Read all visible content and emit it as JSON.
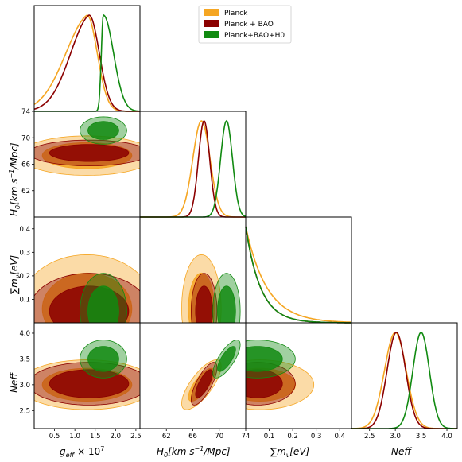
{
  "chart_data": {
    "type": "corner",
    "parameters": [
      {
        "key": "g",
        "label": "g_eff × 10^7",
        "range": [
          0.0,
          2.6
        ],
        "ticks": [
          "0.5",
          "1.0",
          "1.5",
          "2.0",
          "2.5"
        ]
      },
      {
        "key": "H0",
        "label": "H0[km s^-1/Mpc]",
        "range": [
          58,
          74
        ],
        "ticks": [
          "62",
          "66",
          "70",
          "74"
        ]
      },
      {
        "key": "mnu",
        "label": "Σmν[eV]",
        "range": [
          0.0,
          0.45
        ],
        "ticks": [
          "0.1",
          "0.2",
          "0.3",
          "0.4"
        ]
      },
      {
        "key": "Neff",
        "label": "Neff",
        "range": [
          2.15,
          4.2
        ],
        "ticks": [
          "2.5",
          "3.0",
          "3.5",
          "4.0"
        ]
      }
    ],
    "tick_values": {
      "g": [
        0.5,
        1.0,
        1.5,
        2.0,
        2.5
      ],
      "H0": [
        62,
        66,
        70,
        74
      ],
      "mnu": [
        0.1,
        0.2,
        0.3,
        0.4
      ],
      "Neff": [
        2.5,
        3.0,
        3.5,
        4.0
      ]
    },
    "axis_labels": {
      "g_x": "g",
      "g_x_sub": "eff",
      "g_x_suffix": " × 10",
      "g_x_sup": "7",
      "H0_x": "H",
      "H0_x_sub": "0",
      "H0_x_suffix": "[km s",
      "H0_x_sup": "−1",
      "H0_x_suffix2": "/Mpc]",
      "mnu_x": "∑m",
      "mnu_x_sub": "ν",
      "mnu_x_suffix": "[eV]",
      "Neff_x": "Neff"
    },
    "legend": {
      "placement": "top-center",
      "entries": [
        {
          "name": "Planck",
          "color": "#f5a623"
        },
        {
          "name": "Planck + BAO",
          "color": "#8b0000"
        },
        {
          "name": "Planck+BAO+H0",
          "color": "#118a11"
        }
      ]
    },
    "series": [
      {
        "name": "Planck",
        "color": "#f5a623",
        "means": {
          "g": 1.3,
          "H0": 67.3,
          "mnu": 0.06,
          "Neff": 3.0
        },
        "sigmas": {
          "g": 0.55,
          "H0": 1.3,
          "mnu": 0.1,
          "Neff": 0.2
        },
        "g_low": 0.62,
        "Neff_sigma": 0.21,
        "contour_scale": 1.0
      },
      {
        "name": "Planck + BAO",
        "color": "#8b0000",
        "means": {
          "g": 1.35,
          "H0": 67.7,
          "mnu": 0.05,
          "Neff": 3.02
        },
        "sigmas": {
          "g": 0.5,
          "H0": 0.85,
          "mnu": 0.07,
          "Neff": 0.16
        },
        "g_low": 0.52,
        "Neff_sigma": 0.18,
        "contour_scale": 0.85
      },
      {
        "name": "Planck+BAO+H0",
        "color": "#118a11",
        "means": {
          "g": 1.7,
          "H0": 71.1,
          "mnu": 0.05,
          "Neff": 3.5
        },
        "sigmas": {
          "g": 0.35,
          "H0": 0.9,
          "mnu": 0.07,
          "Neff": 0.16
        },
        "g_low": 0.05,
        "Neff_sigma": 0.16,
        "contour_scale": 0.85
      }
    ],
    "grid": false
  }
}
